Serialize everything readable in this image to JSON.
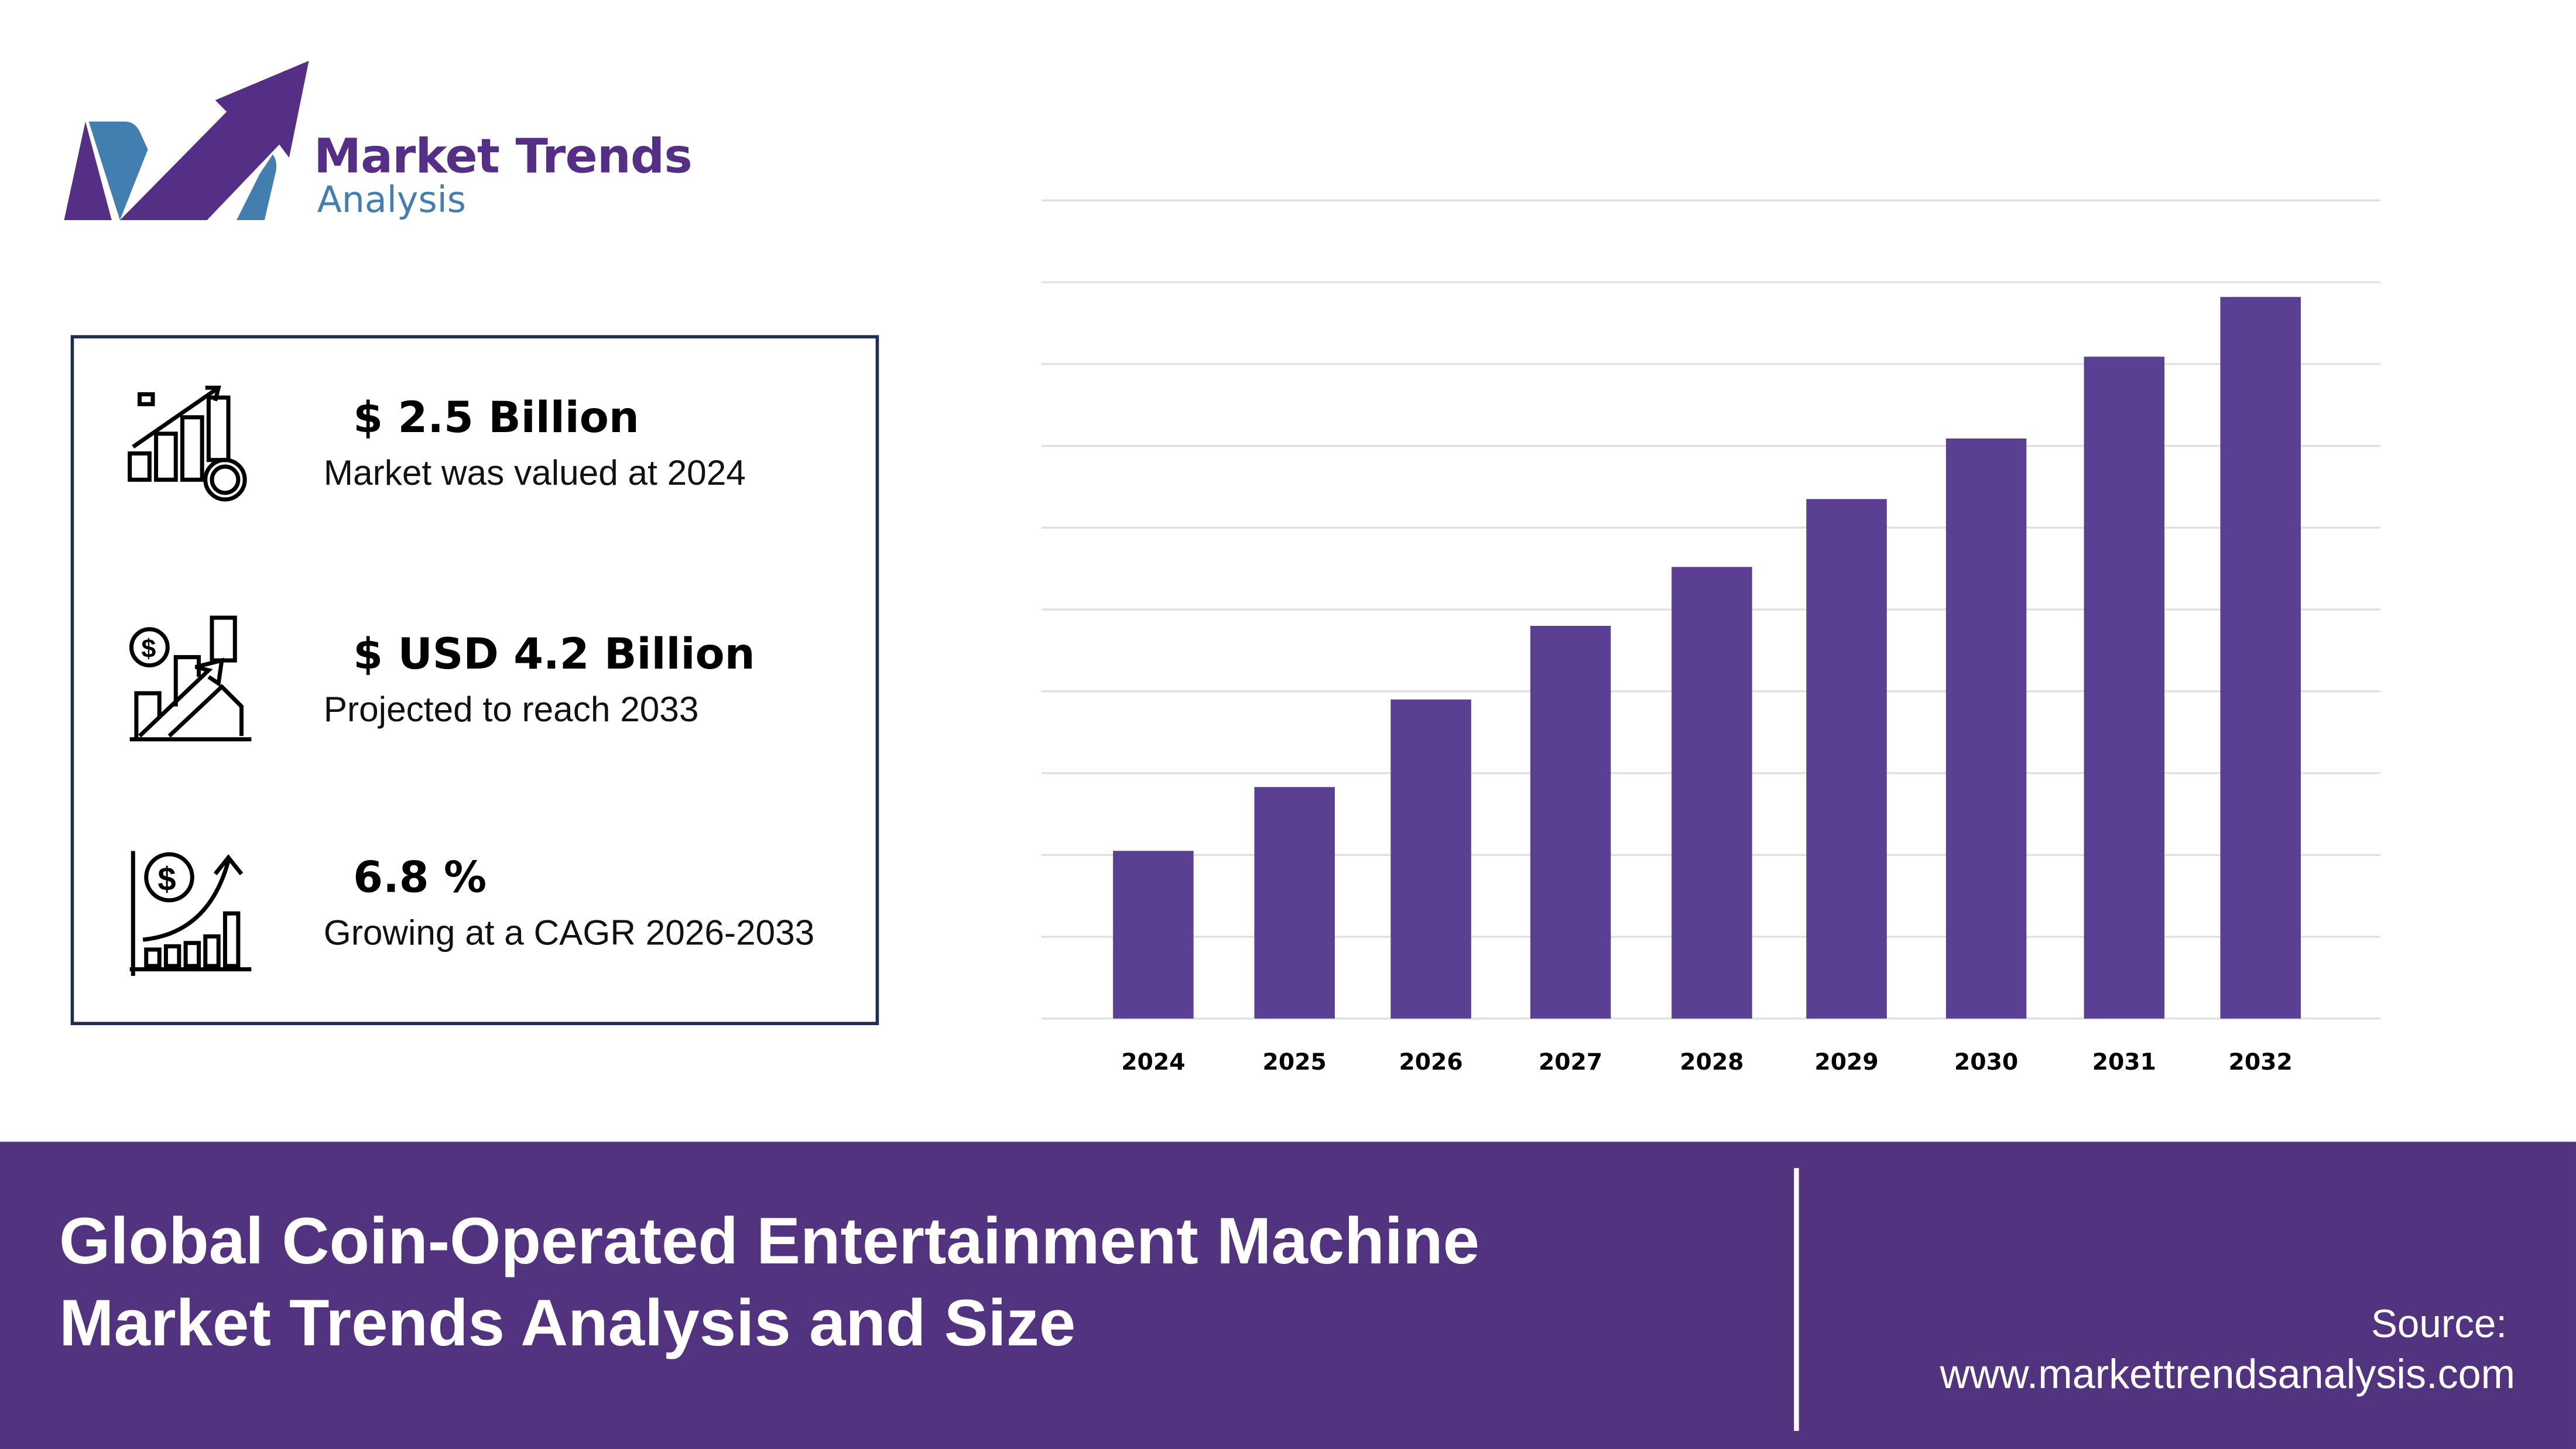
{
  "logo": {
    "title": "Market Trends",
    "subtitle": "Analysis",
    "colors": {
      "purple": "#542f85",
      "blue": "#437eb0"
    }
  },
  "stats": [
    {
      "icon": "chart-growth-coin-icon",
      "value": "$ 2.5 Billion",
      "label": "Market was valued at 2024"
    },
    {
      "icon": "dollar-bar-arrow-icon",
      "value": "$ USD 4.2 Billion",
      "label": "Projected to reach 2033"
    },
    {
      "icon": "cagr-growth-icon",
      "value": "6.8 %",
      "label": "Growing at a CAGR 2026-2033"
    }
  ],
  "chart_data": {
    "type": "bar",
    "categories": [
      "2024",
      "2025",
      "2026",
      "2027",
      "2028",
      "2029",
      "2030",
      "2031",
      "2032"
    ],
    "values": [
      2.05,
      2.83,
      3.9,
      4.8,
      5.52,
      6.35,
      7.09,
      8.09,
      8.82
    ],
    "ylim": [
      0,
      10
    ],
    "grid": true,
    "bar_color": "#5a3f93",
    "title": "",
    "xlabel": "",
    "ylabel": ""
  },
  "footer": {
    "title_line1": "Global Coin-Operated Entertainment Machine",
    "title_line2": "Market Trends Analysis and Size",
    "source_label": "Source:",
    "source_url": "www.markettrendsanalysis.com",
    "background": "#523380"
  }
}
